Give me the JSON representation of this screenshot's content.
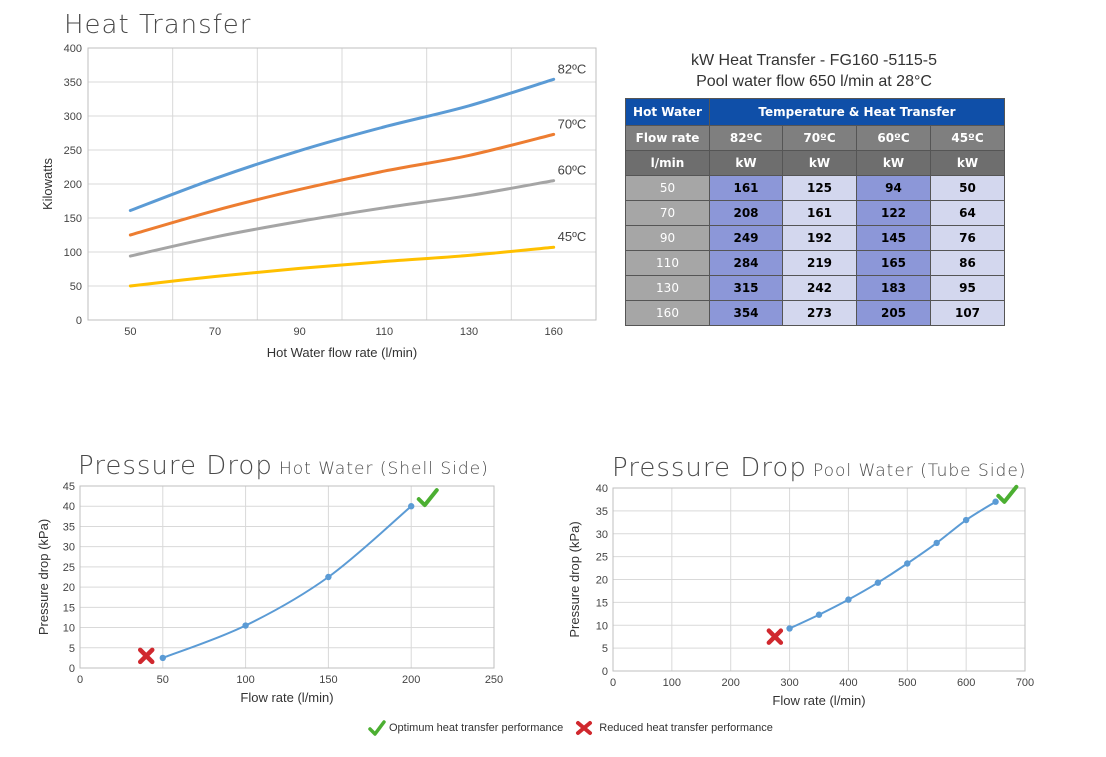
{
  "heat_chart": {
    "title": "Heat Transfer",
    "xlabel": "Hot Water flow rate (l/min)",
    "ylabel": "Kilowatts"
  },
  "table": {
    "caption_line1": "kW Heat Transfer - FG160 -5115-5",
    "caption_line2": "Pool water flow 650 l/min at 28°C",
    "header_hot_water": "Hot Water",
    "header_temp": "Temperature & Heat Transfer",
    "header_flow_rate": "Flow rate",
    "header_lmin": "l/min",
    "temps": [
      "82ºC",
      "70ºC",
      "60ºC",
      "45ºC"
    ],
    "unit": "kW",
    "rows": [
      {
        "flow": "50",
        "vals": [
          "161",
          "125",
          "94",
          "50"
        ]
      },
      {
        "flow": "70",
        "vals": [
          "208",
          "161",
          "122",
          "64"
        ]
      },
      {
        "flow": "90",
        "vals": [
          "249",
          "192",
          "145",
          "76"
        ]
      },
      {
        "flow": "110",
        "vals": [
          "284",
          "219",
          "165",
          "86"
        ]
      },
      {
        "flow": "130",
        "vals": [
          "315",
          "242",
          "183",
          "95"
        ]
      },
      {
        "flow": "160",
        "vals": [
          "354",
          "273",
          "205",
          "107"
        ]
      }
    ]
  },
  "pd_hot": {
    "title_main": "Pressure Drop",
    "title_sub": "Hot Water (Shell Side)",
    "xlabel": "Flow rate (l/min)",
    "ylabel": "Pressure drop (kPa)"
  },
  "pd_pool": {
    "title_main": "Pressure Drop",
    "title_sub": "Pool Water (Tube Side)",
    "xlabel": "Flow rate (l/min)",
    "ylabel": "Pressure drop (kPa)"
  },
  "legend": {
    "optimum": "Optimum heat transfer performance",
    "reduced": "Reduced heat transfer performance"
  },
  "colors": {
    "c82": "#5b9bd5",
    "c70": "#ed7d31",
    "c60": "#a5a5a5",
    "c45": "#ffc000",
    "pd_line": "#5b9bd5",
    "check": "#4caf32",
    "cross": "#d0282e"
  },
  "chart_data": [
    {
      "type": "line",
      "title": "Heat Transfer",
      "xlabel": "Hot Water flow rate (l/min)",
      "ylabel": "Kilowatts",
      "categories": [
        "50",
        "70",
        "90",
        "110",
        "130",
        "160"
      ],
      "ylim": [
        0,
        400
      ],
      "yticks": [
        0,
        50,
        100,
        150,
        200,
        250,
        300,
        350,
        400
      ],
      "grid": true,
      "series": [
        {
          "name": "82ºC",
          "values": [
            161,
            208,
            249,
            284,
            315,
            354
          ]
        },
        {
          "name": "70ºC",
          "values": [
            125,
            161,
            192,
            219,
            242,
            273
          ]
        },
        {
          "name": "60ºC",
          "values": [
            94,
            122,
            145,
            165,
            183,
            205
          ]
        },
        {
          "name": "45ºC",
          "values": [
            50,
            64,
            76,
            86,
            95,
            107
          ]
        }
      ]
    },
    {
      "type": "line",
      "title": "Pressure Drop Hot Water (Shell Side)",
      "xlabel": "Flow rate (l/min)",
      "ylabel": "Pressure drop (kPa)",
      "xlim": [
        0,
        250
      ],
      "xticks": [
        0,
        50,
        100,
        150,
        200,
        250
      ],
      "ylim": [
        0,
        45
      ],
      "yticks": [
        0,
        5,
        10,
        15,
        20,
        25,
        30,
        35,
        40,
        45
      ],
      "grid": true,
      "x": [
        50,
        100,
        150,
        200
      ],
      "y": [
        2.5,
        10.5,
        22.5,
        40
      ],
      "reduced_marker": {
        "x": 40,
        "y": 3
      },
      "optimum_marker": {
        "x": 210,
        "y": 42
      }
    },
    {
      "type": "line",
      "title": "Pressure Drop Pool Water (Tube Side)",
      "xlabel": "Flow rate (l/min)",
      "ylabel": "Pressure drop (kPa)",
      "xlim": [
        0,
        700
      ],
      "xticks": [
        0,
        100,
        200,
        300,
        400,
        500,
        600,
        700
      ],
      "ylim": [
        0,
        40
      ],
      "yticks": [
        0,
        5,
        10,
        15,
        20,
        25,
        30,
        35,
        40
      ],
      "grid": true,
      "x": [
        300,
        350,
        400,
        450,
        500,
        550,
        600,
        650
      ],
      "y": [
        9.3,
        12.3,
        15.6,
        19.3,
        23.5,
        28,
        33,
        37
      ],
      "reduced_marker": {
        "x": 275,
        "y": 7.5
      },
      "optimum_marker": {
        "x": 670,
        "y": 38.5
      }
    }
  ]
}
